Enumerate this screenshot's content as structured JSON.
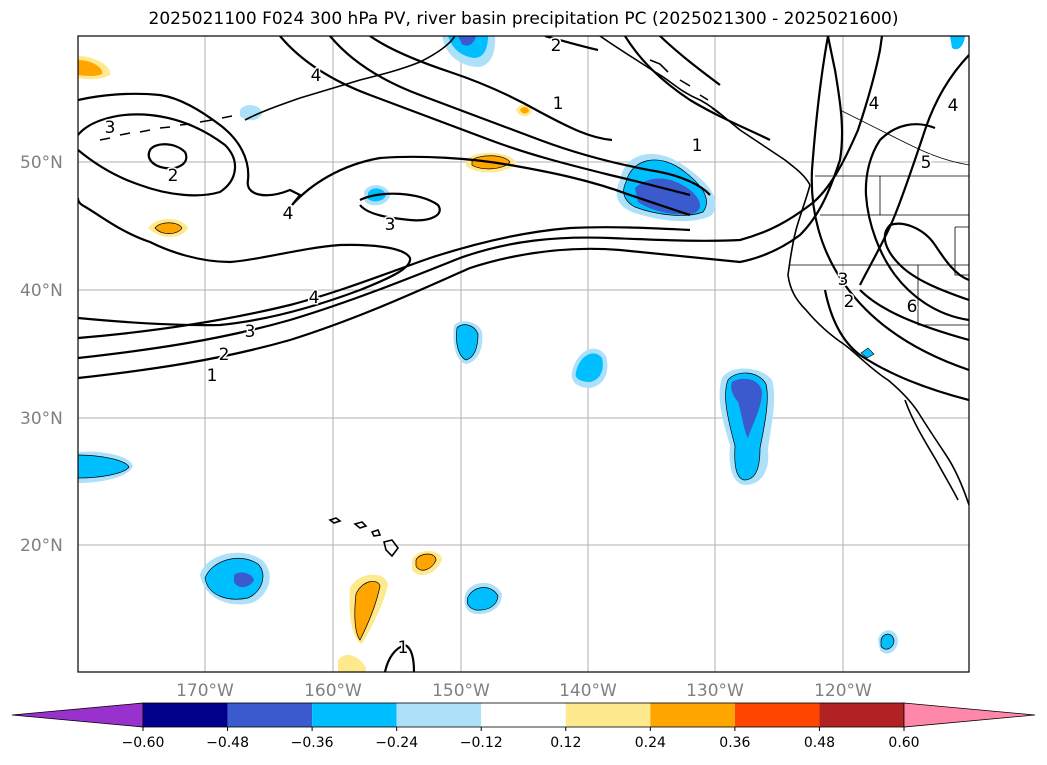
{
  "title": "2025021100 F024 300 hPa PV, river basin precipitation PC (2025021300 - 2025021600)",
  "map": {
    "lat_labels": [
      "50°N",
      "40°N",
      "30°N",
      "20°N"
    ],
    "lon_labels": [
      "170°W",
      "160°W",
      "150°W",
      "140°W",
      "130°W",
      "120°W"
    ],
    "contour_labels": [
      "3",
      "2",
      "4",
      "3",
      "4",
      "3",
      "2",
      "1",
      "2",
      "1",
      "4",
      "1",
      "4",
      "5",
      "3",
      "2",
      "6",
      "1",
      "4"
    ],
    "pv_contour_levels": [
      1,
      2,
      3,
      4,
      5,
      6
    ],
    "shading_colors": {
      "purple": "#9932CC",
      "navy": "#00008B",
      "royal": "#3A5ACD",
      "cyan": "#00BFFF",
      "lightcyan": "#ADE1FA",
      "white": "#FFFFFF",
      "yellow": "#FFE98F",
      "orange": "#FFA500",
      "redorange": "#FF4500",
      "firebrick": "#B22222",
      "pink": "#FF88AA"
    }
  },
  "colorbar": {
    "ticks": [
      "−0.60",
      "−0.48",
      "−0.36",
      "−0.24",
      "−0.12",
      "0.12",
      "0.24",
      "0.36",
      "0.48",
      "0.60"
    ],
    "segment_colors": [
      "#00008B",
      "#3A5ACD",
      "#00BFFF",
      "#ADE1FA",
      "#FFFFFF",
      "#FFE98F",
      "#FFA500",
      "#FF4500",
      "#B22222"
    ],
    "under_color": "#9932CC",
    "over_color": "#FF88AA"
  }
}
